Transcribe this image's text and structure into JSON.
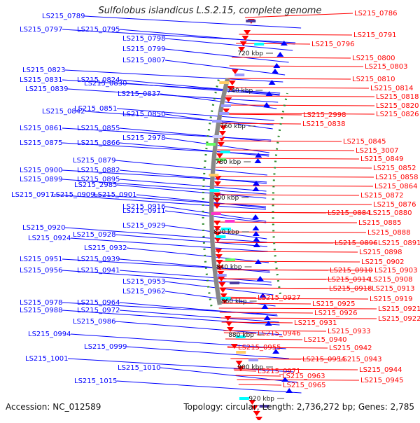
{
  "title": "Sulfolobus islandicus L.S.2.15, complete genome",
  "accession": "Accession: NC_012589",
  "topology": "Topology: circular; Length: 2,736,272 bp; Genes: 2,785",
  "colors": {
    "forward": "#0000ff",
    "reverse": "#ff0000",
    "backbone": "#888888",
    "gc": "#2e8b2e"
  },
  "left_labels": [
    "LS215_0789",
    "LS215_0797",
    "LS215_0795",
    "LS215_0798",
    "LS215_0799",
    "LS215_0807",
    "LS215_0823",
    "LS215_0824",
    "LS215_0831",
    "LS215_0830",
    "LS215_0839",
    "LS215_0837",
    "LS215_0851",
    "LS215_0850",
    "LS215_0842",
    "LS215_0861",
    "LS215_0855",
    "LS215_2978",
    "LS215_0875",
    "LS215_0866",
    "LS215_0879",
    "LS215_0882",
    "LS215_0900",
    "LS215_0899",
    "LS215_0895",
    "LS215_2985",
    "LS215_0917",
    "LS215_0909",
    "LS215_0901",
    "LS215_0916",
    "LS215_0911",
    "LS215_0929",
    "LS215_0920",
    "LS215_0928",
    "LS215_0924",
    "LS215_0932",
    "LS215_0951",
    "LS215_0939",
    "LS215_0956",
    "LS215_0941",
    "LS215_0953",
    "LS215_0962",
    "LS215_0978",
    "LS215_0964",
    "LS215_0988",
    "LS215_0972",
    "LS215_0986",
    "LS215_0994",
    "LS215_0999",
    "LS215_1001",
    "LS215_1010",
    "LS215_1015"
  ],
  "right_labels": [
    "LS215_0786",
    "LS215_0791",
    "LS215_0796",
    "LS215_0800",
    "LS215_0803",
    "LS215_0810",
    "LS215_0814",
    "LS215_0818",
    "LS215_0820",
    "LS215_0826",
    "LS215_2998",
    "LS215_0838",
    "LS215_0845",
    "LS215_3007",
    "LS215_0849",
    "LS215_0852",
    "LS215_0858",
    "LS215_0864",
    "LS215_0872",
    "LS215_0876",
    "LS215_0884",
    "LS215_0880",
    "LS215_0885",
    "LS215_0888",
    "LS215_0896",
    "LS215_0891",
    "LS215_0898",
    "LS215_0902",
    "LS215_0910",
    "LS215_0903",
    "LS215_0914",
    "LS215_0908",
    "LS215_0918",
    "LS215_0913",
    "LS215_0919",
    "LS215_0927",
    "LS215_0925",
    "LS215_0921",
    "LS215_0926",
    "LS215_0922",
    "LS215_0931",
    "LS215_0946",
    "LS215_0933",
    "LS215_0940",
    "LS215_0942",
    "LS215_0955",
    "LS215_0954",
    "LS215_0943",
    "LS215_0944",
    "LS215_0971",
    "LS215_0963",
    "LS215_0945",
    "LS215_0965"
  ],
  "scale_labels": [
    "720 kbp",
    "740 kbp",
    "760 kbp",
    "780 kbp",
    "800 kbp",
    "820 kbp",
    "840 kbp",
    "860 kbp",
    "880 kbp",
    "900 kbp",
    "920 kbp"
  ]
}
